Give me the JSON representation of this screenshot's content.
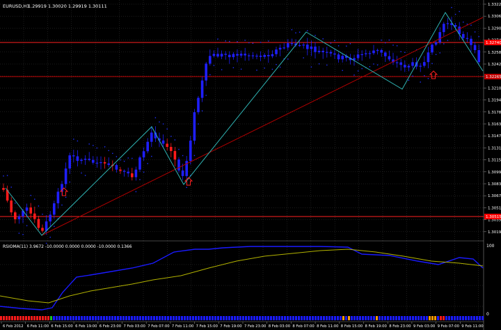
{
  "header": {
    "symbol": "EURUSD,H1",
    "ohlc": "1.29919 1.30020 1.29919 1.30111"
  },
  "price_scale": [
    "1.33220",
    "1.33060",
    "1.32900",
    "1.32740",
    "1.32585",
    "1.32425",
    "1.32265",
    "1.32105",
    "1.31945",
    "1.31785",
    "1.31630",
    "1.31470",
    "1.31310",
    "1.31150",
    "1.30990",
    "1.30835",
    "1.30675",
    "1.30515",
    "1.30355",
    "1.30195"
  ],
  "price_marks": [
    {
      "label": "1.32740",
      "color": "#ff0000"
    },
    {
      "label": "1.32265",
      "color": "#c00000"
    },
    {
      "label": "1.30515",
      "color": "#ff0000"
    }
  ],
  "indicator": {
    "label": "RSIOMA(11) 3.9672 -10.0000 0.0000 0.0000 -10.0000 0.1366",
    "scale_top": "100",
    "scale_bottom": "0"
  },
  "time_axis": [
    "6 Feb 2012",
    "6 Feb 11:00",
    "6 Feb 15:00",
    "6 Feb 19:00",
    "6 Feb 23:00",
    "7 Feb 03:00",
    "7 Feb 07:00",
    "7 Feb 11:00",
    "7 Feb 15:00",
    "7 Feb 19:00",
    "7 Feb 23:00",
    "8 Feb 03:00",
    "8 Feb 07:00",
    "8 Feb 11:00",
    "8 Feb 15:00",
    "8 Feb 19:00",
    "8 Feb 23:00",
    "9 Feb 03:00",
    "9 Feb 07:00",
    "9 Feb 11:00"
  ],
  "colors": {
    "background": "#000000",
    "grid": "#3a3a3a",
    "bull": "#1f1fff",
    "bear": "#ff1a1a",
    "zigzag": "#2fb3b3",
    "trend": "#b00000",
    "hline": "#d00000",
    "dots": "#2030ff",
    "rsi": "#1a1aff",
    "signal": "#b3b300",
    "arrow": "#ff2020"
  },
  "icons": [
    "up-arrow-icon"
  ]
}
